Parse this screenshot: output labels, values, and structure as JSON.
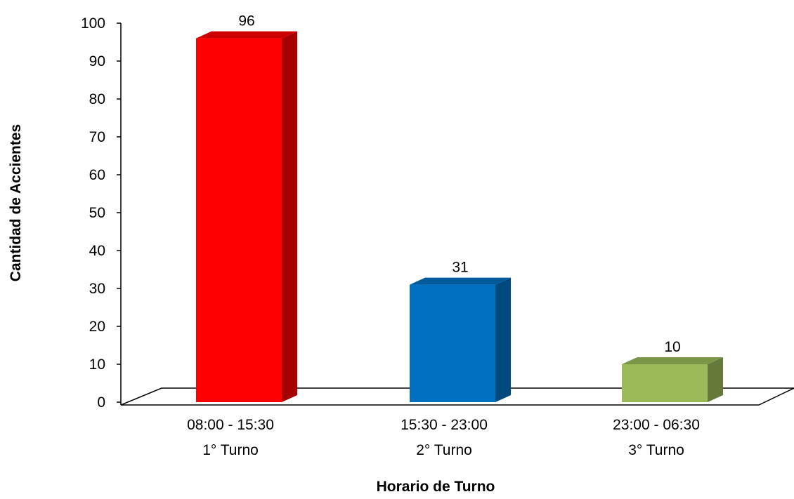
{
  "chart_data": {
    "type": "bar",
    "title": "",
    "xlabel": "Horario de Turno",
    "ylabel": "Cantidad de Accientes",
    "ylim": [
      0,
      100
    ],
    "yticks": [
      0,
      10,
      20,
      30,
      40,
      50,
      60,
      70,
      80,
      90,
      100
    ],
    "categories": [
      {
        "time": "08:00 - 15:30",
        "shift": "1° Turno"
      },
      {
        "time": "15:30 - 23:00",
        "shift": "2° Turno"
      },
      {
        "time": "23:00 - 06:30",
        "shift": "3° Turno"
      }
    ],
    "values": [
      96,
      31,
      10
    ],
    "colors": [
      "#ff0000",
      "#0070c0",
      "#9bbb59"
    ],
    "grid": false,
    "legend": "none",
    "style": "3d-column"
  }
}
